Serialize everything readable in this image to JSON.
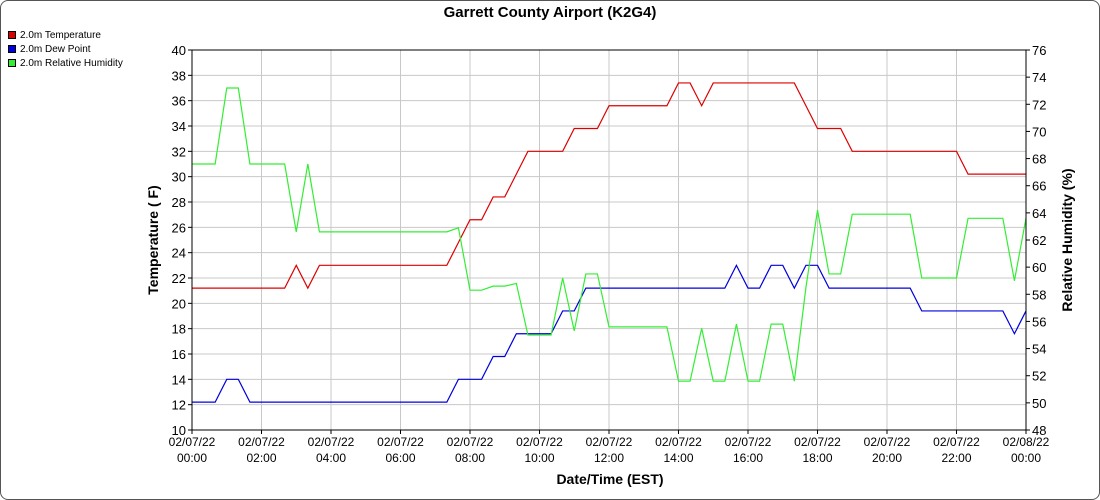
{
  "chart_data": {
    "type": "line",
    "title": "Garrett County Airport (K2G4)",
    "xlabel": "Date/Time (EST)",
    "ylabel_left": "Temperature ( F)",
    "ylabel_right": "Relative Humidity (%)",
    "x_ticks": [
      [
        "02/07/22",
        "00:00"
      ],
      [
        "02/07/22",
        "02:00"
      ],
      [
        "02/07/22",
        "04:00"
      ],
      [
        "02/07/22",
        "06:00"
      ],
      [
        "02/07/22",
        "08:00"
      ],
      [
        "02/07/22",
        "10:00"
      ],
      [
        "02/07/22",
        "12:00"
      ],
      [
        "02/07/22",
        "14:00"
      ],
      [
        "02/07/22",
        "16:00"
      ],
      [
        "02/07/22",
        "18:00"
      ],
      [
        "02/07/22",
        "20:00"
      ],
      [
        "02/07/22",
        "22:00"
      ],
      [
        "02/08/22",
        "00:00"
      ]
    ],
    "xlim": [
      "02/07/22 00:00",
      "02/08/22 00:00"
    ],
    "ylim_left": [
      10,
      40
    ],
    "yticks_left": [
      10,
      12,
      14,
      16,
      18,
      20,
      22,
      24,
      26,
      28,
      30,
      32,
      34,
      36,
      38,
      40
    ],
    "ylim_right": [
      48,
      76
    ],
    "yticks_right": [
      48,
      50,
      52,
      54,
      56,
      58,
      60,
      62,
      64,
      66,
      68,
      70,
      72,
      74,
      76
    ],
    "grid": true,
    "legend_position": "top-left",
    "series": [
      {
        "name": "2.0m Temperature",
        "color": "#dd0000",
        "axis": "left",
        "points": [
          [
            "02/07/22 00:00",
            21.2
          ],
          [
            "02/07/22 00:20",
            21.2
          ],
          [
            "02/07/22 00:40",
            21.2
          ],
          [
            "02/07/22 01:00",
            21.2
          ],
          [
            "02/07/22 01:20",
            21.2
          ],
          [
            "02/07/22 01:40",
            21.2
          ],
          [
            "02/07/22 02:00",
            21.2
          ],
          [
            "02/07/22 02:20",
            21.2
          ],
          [
            "02/07/22 02:40",
            21.2
          ],
          [
            "02/07/22 03:00",
            23.0
          ],
          [
            "02/07/22 03:20",
            21.2
          ],
          [
            "02/07/22 03:40",
            23.0
          ],
          [
            "02/07/22 04:00",
            23.0
          ],
          [
            "02/07/22 04:20",
            23.0
          ],
          [
            "02/07/22 04:40",
            23.0
          ],
          [
            "02/07/22 05:00",
            23.0
          ],
          [
            "02/07/22 05:20",
            23.0
          ],
          [
            "02/07/22 05:40",
            23.0
          ],
          [
            "02/07/22 06:00",
            23.0
          ],
          [
            "02/07/22 06:20",
            23.0
          ],
          [
            "02/07/22 06:40",
            23.0
          ],
          [
            "02/07/22 07:00",
            23.0
          ],
          [
            "02/07/22 07:20",
            23.0
          ],
          [
            "02/07/22 07:40",
            24.8
          ],
          [
            "02/07/22 08:00",
            26.6
          ],
          [
            "02/07/22 08:20",
            26.6
          ],
          [
            "02/07/22 08:40",
            28.4
          ],
          [
            "02/07/22 09:00",
            28.4
          ],
          [
            "02/07/22 09:20",
            30.2
          ],
          [
            "02/07/22 09:40",
            32.0
          ],
          [
            "02/07/22 10:00",
            32.0
          ],
          [
            "02/07/22 10:20",
            32.0
          ],
          [
            "02/07/22 10:40",
            32.0
          ],
          [
            "02/07/22 11:00",
            33.8
          ],
          [
            "02/07/22 11:20",
            33.8
          ],
          [
            "02/07/22 11:40",
            33.8
          ],
          [
            "02/07/22 12:00",
            35.6
          ],
          [
            "02/07/22 12:20",
            35.6
          ],
          [
            "02/07/22 12:40",
            35.6
          ],
          [
            "02/07/22 13:00",
            35.6
          ],
          [
            "02/07/22 13:20",
            35.6
          ],
          [
            "02/07/22 13:40",
            35.6
          ],
          [
            "02/07/22 14:00",
            37.4
          ],
          [
            "02/07/22 14:20",
            37.4
          ],
          [
            "02/07/22 14:40",
            35.6
          ],
          [
            "02/07/22 15:00",
            37.4
          ],
          [
            "02/07/22 15:20",
            37.4
          ],
          [
            "02/07/22 15:40",
            37.4
          ],
          [
            "02/07/22 16:00",
            37.4
          ],
          [
            "02/07/22 16:20",
            37.4
          ],
          [
            "02/07/22 16:40",
            37.4
          ],
          [
            "02/07/22 17:00",
            37.4
          ],
          [
            "02/07/22 17:20",
            37.4
          ],
          [
            "02/07/22 17:40",
            35.6
          ],
          [
            "02/07/22 18:00",
            33.8
          ],
          [
            "02/07/22 18:20",
            33.8
          ],
          [
            "02/07/22 18:40",
            33.8
          ],
          [
            "02/07/22 19:00",
            32.0
          ],
          [
            "02/07/22 19:20",
            32.0
          ],
          [
            "02/07/22 19:40",
            32.0
          ],
          [
            "02/07/22 20:00",
            32.0
          ],
          [
            "02/07/22 20:20",
            32.0
          ],
          [
            "02/07/22 20:40",
            32.0
          ],
          [
            "02/07/22 21:00",
            32.0
          ],
          [
            "02/07/22 21:20",
            32.0
          ],
          [
            "02/07/22 21:40",
            32.0
          ],
          [
            "02/07/22 22:00",
            32.0
          ],
          [
            "02/07/22 22:20",
            30.2
          ],
          [
            "02/07/22 22:40",
            30.2
          ],
          [
            "02/07/22 23:00",
            30.2
          ],
          [
            "02/07/22 23:20",
            30.2
          ],
          [
            "02/07/22 23:40",
            30.2
          ],
          [
            "02/08/22 00:00",
            30.2
          ]
        ]
      },
      {
        "name": "2.0m Dew Point",
        "color": "#0000dd",
        "axis": "left",
        "points": [
          [
            "02/07/22 00:00",
            12.2
          ],
          [
            "02/07/22 00:20",
            12.2
          ],
          [
            "02/07/22 00:40",
            12.2
          ],
          [
            "02/07/22 01:00",
            14.0
          ],
          [
            "02/07/22 01:20",
            14.0
          ],
          [
            "02/07/22 01:40",
            12.2
          ],
          [
            "02/07/22 02:00",
            12.2
          ],
          [
            "02/07/22 02:20",
            12.2
          ],
          [
            "02/07/22 02:40",
            12.2
          ],
          [
            "02/07/22 03:00",
            12.2
          ],
          [
            "02/07/22 03:20",
            12.2
          ],
          [
            "02/07/22 03:40",
            12.2
          ],
          [
            "02/07/22 04:00",
            12.2
          ],
          [
            "02/07/22 04:20",
            12.2
          ],
          [
            "02/07/22 04:40",
            12.2
          ],
          [
            "02/07/22 05:00",
            12.2
          ],
          [
            "02/07/22 05:20",
            12.2
          ],
          [
            "02/07/22 05:40",
            12.2
          ],
          [
            "02/07/22 06:00",
            12.2
          ],
          [
            "02/07/22 06:20",
            12.2
          ],
          [
            "02/07/22 06:40",
            12.2
          ],
          [
            "02/07/22 07:00",
            12.2
          ],
          [
            "02/07/22 07:20",
            12.2
          ],
          [
            "02/07/22 07:40",
            14.0
          ],
          [
            "02/07/22 08:00",
            14.0
          ],
          [
            "02/07/22 08:20",
            14.0
          ],
          [
            "02/07/22 08:40",
            15.8
          ],
          [
            "02/07/22 09:00",
            15.8
          ],
          [
            "02/07/22 09:20",
            17.6
          ],
          [
            "02/07/22 09:40",
            17.6
          ],
          [
            "02/07/22 10:00",
            17.6
          ],
          [
            "02/07/22 10:20",
            17.6
          ],
          [
            "02/07/22 10:40",
            19.4
          ],
          [
            "02/07/22 11:00",
            19.4
          ],
          [
            "02/07/22 11:20",
            21.2
          ],
          [
            "02/07/22 11:40",
            21.2
          ],
          [
            "02/07/22 12:00",
            21.2
          ],
          [
            "02/07/22 12:20",
            21.2
          ],
          [
            "02/07/22 12:40",
            21.2
          ],
          [
            "02/07/22 13:00",
            21.2
          ],
          [
            "02/07/22 13:20",
            21.2
          ],
          [
            "02/07/22 13:40",
            21.2
          ],
          [
            "02/07/22 14:00",
            21.2
          ],
          [
            "02/07/22 14:20",
            21.2
          ],
          [
            "02/07/22 14:40",
            21.2
          ],
          [
            "02/07/22 15:00",
            21.2
          ],
          [
            "02/07/22 15:20",
            21.2
          ],
          [
            "02/07/22 15:40",
            23.0
          ],
          [
            "02/07/22 16:00",
            21.2
          ],
          [
            "02/07/22 16:20",
            21.2
          ],
          [
            "02/07/22 16:40",
            23.0
          ],
          [
            "02/07/22 17:00",
            23.0
          ],
          [
            "02/07/22 17:20",
            21.2
          ],
          [
            "02/07/22 17:40",
            23.0
          ],
          [
            "02/07/22 18:00",
            23.0
          ],
          [
            "02/07/22 18:20",
            21.2
          ],
          [
            "02/07/22 18:40",
            21.2
          ],
          [
            "02/07/22 19:00",
            21.2
          ],
          [
            "02/07/22 19:20",
            21.2
          ],
          [
            "02/07/22 19:40",
            21.2
          ],
          [
            "02/07/22 20:00",
            21.2
          ],
          [
            "02/07/22 20:20",
            21.2
          ],
          [
            "02/07/22 20:40",
            21.2
          ],
          [
            "02/07/22 21:00",
            19.4
          ],
          [
            "02/07/22 21:20",
            19.4
          ],
          [
            "02/07/22 21:40",
            19.4
          ],
          [
            "02/07/22 22:00",
            19.4
          ],
          [
            "02/07/22 22:20",
            19.4
          ],
          [
            "02/07/22 22:40",
            19.4
          ],
          [
            "02/07/22 23:00",
            19.4
          ],
          [
            "02/07/22 23:20",
            19.4
          ],
          [
            "02/07/22 23:40",
            17.6
          ],
          [
            "02/08/22 00:00",
            19.4
          ]
        ]
      },
      {
        "name": "2.0m Relative Humidity",
        "color": "#33ee33",
        "axis": "right",
        "points": [
          [
            "02/07/22 00:00",
            67.6
          ],
          [
            "02/07/22 00:20",
            67.6
          ],
          [
            "02/07/22 00:40",
            67.6
          ],
          [
            "02/07/22 01:00",
            73.2
          ],
          [
            "02/07/22 01:20",
            73.2
          ],
          [
            "02/07/22 01:40",
            67.6
          ],
          [
            "02/07/22 02:00",
            67.6
          ],
          [
            "02/07/22 02:20",
            67.6
          ],
          [
            "02/07/22 02:40",
            67.6
          ],
          [
            "02/07/22 03:00",
            62.6
          ],
          [
            "02/07/22 03:20",
            67.6
          ],
          [
            "02/07/22 03:40",
            62.6
          ],
          [
            "02/07/22 04:00",
            62.6
          ],
          [
            "02/07/22 04:20",
            62.6
          ],
          [
            "02/07/22 04:40",
            62.6
          ],
          [
            "02/07/22 05:00",
            62.6
          ],
          [
            "02/07/22 05:20",
            62.6
          ],
          [
            "02/07/22 05:40",
            62.6
          ],
          [
            "02/07/22 06:00",
            62.6
          ],
          [
            "02/07/22 06:20",
            62.6
          ],
          [
            "02/07/22 06:40",
            62.6
          ],
          [
            "02/07/22 07:00",
            62.6
          ],
          [
            "02/07/22 07:20",
            62.6
          ],
          [
            "02/07/22 07:40",
            62.9
          ],
          [
            "02/07/22 08:00",
            58.3
          ],
          [
            "02/07/22 08:20",
            58.3
          ],
          [
            "02/07/22 08:40",
            58.6
          ],
          [
            "02/07/22 09:00",
            58.6
          ],
          [
            "02/07/22 09:20",
            58.8
          ],
          [
            "02/07/22 09:40",
            55.0
          ],
          [
            "02/07/22 10:00",
            55.0
          ],
          [
            "02/07/22 10:20",
            55.0
          ],
          [
            "02/07/22 10:40",
            59.2
          ],
          [
            "02/07/22 11:00",
            55.3
          ],
          [
            "02/07/22 11:20",
            59.5
          ],
          [
            "02/07/22 11:40",
            59.5
          ],
          [
            "02/07/22 12:00",
            55.6
          ],
          [
            "02/07/22 12:20",
            55.6
          ],
          [
            "02/07/22 12:40",
            55.6
          ],
          [
            "02/07/22 13:00",
            55.6
          ],
          [
            "02/07/22 13:20",
            55.6
          ],
          [
            "02/07/22 13:40",
            55.6
          ],
          [
            "02/07/22 14:00",
            51.6
          ],
          [
            "02/07/22 14:20",
            51.6
          ],
          [
            "02/07/22 14:40",
            55.5
          ],
          [
            "02/07/22 15:00",
            51.6
          ],
          [
            "02/07/22 15:20",
            51.6
          ],
          [
            "02/07/22 15:40",
            55.8
          ],
          [
            "02/07/22 16:00",
            51.6
          ],
          [
            "02/07/22 16:20",
            51.6
          ],
          [
            "02/07/22 16:40",
            55.8
          ],
          [
            "02/07/22 17:00",
            55.8
          ],
          [
            "02/07/22 17:20",
            51.6
          ],
          [
            "02/07/22 17:40",
            58.5
          ],
          [
            "02/07/22 18:00",
            64.2
          ],
          [
            "02/07/22 18:20",
            59.5
          ],
          [
            "02/07/22 18:40",
            59.5
          ],
          [
            "02/07/22 19:00",
            63.9
          ],
          [
            "02/07/22 19:20",
            63.9
          ],
          [
            "02/07/22 19:40",
            63.9
          ],
          [
            "02/07/22 20:00",
            63.9
          ],
          [
            "02/07/22 20:20",
            63.9
          ],
          [
            "02/07/22 20:40",
            63.9
          ],
          [
            "02/07/22 21:00",
            59.2
          ],
          [
            "02/07/22 21:20",
            59.2
          ],
          [
            "02/07/22 21:40",
            59.2
          ],
          [
            "02/07/22 22:00",
            59.2
          ],
          [
            "02/07/22 22:20",
            63.6
          ],
          [
            "02/07/22 22:40",
            63.6
          ],
          [
            "02/07/22 23:00",
            63.6
          ],
          [
            "02/07/22 23:20",
            63.6
          ],
          [
            "02/07/22 23:40",
            59.0
          ],
          [
            "02/08/22 00:00",
            63.6
          ]
        ]
      }
    ]
  }
}
